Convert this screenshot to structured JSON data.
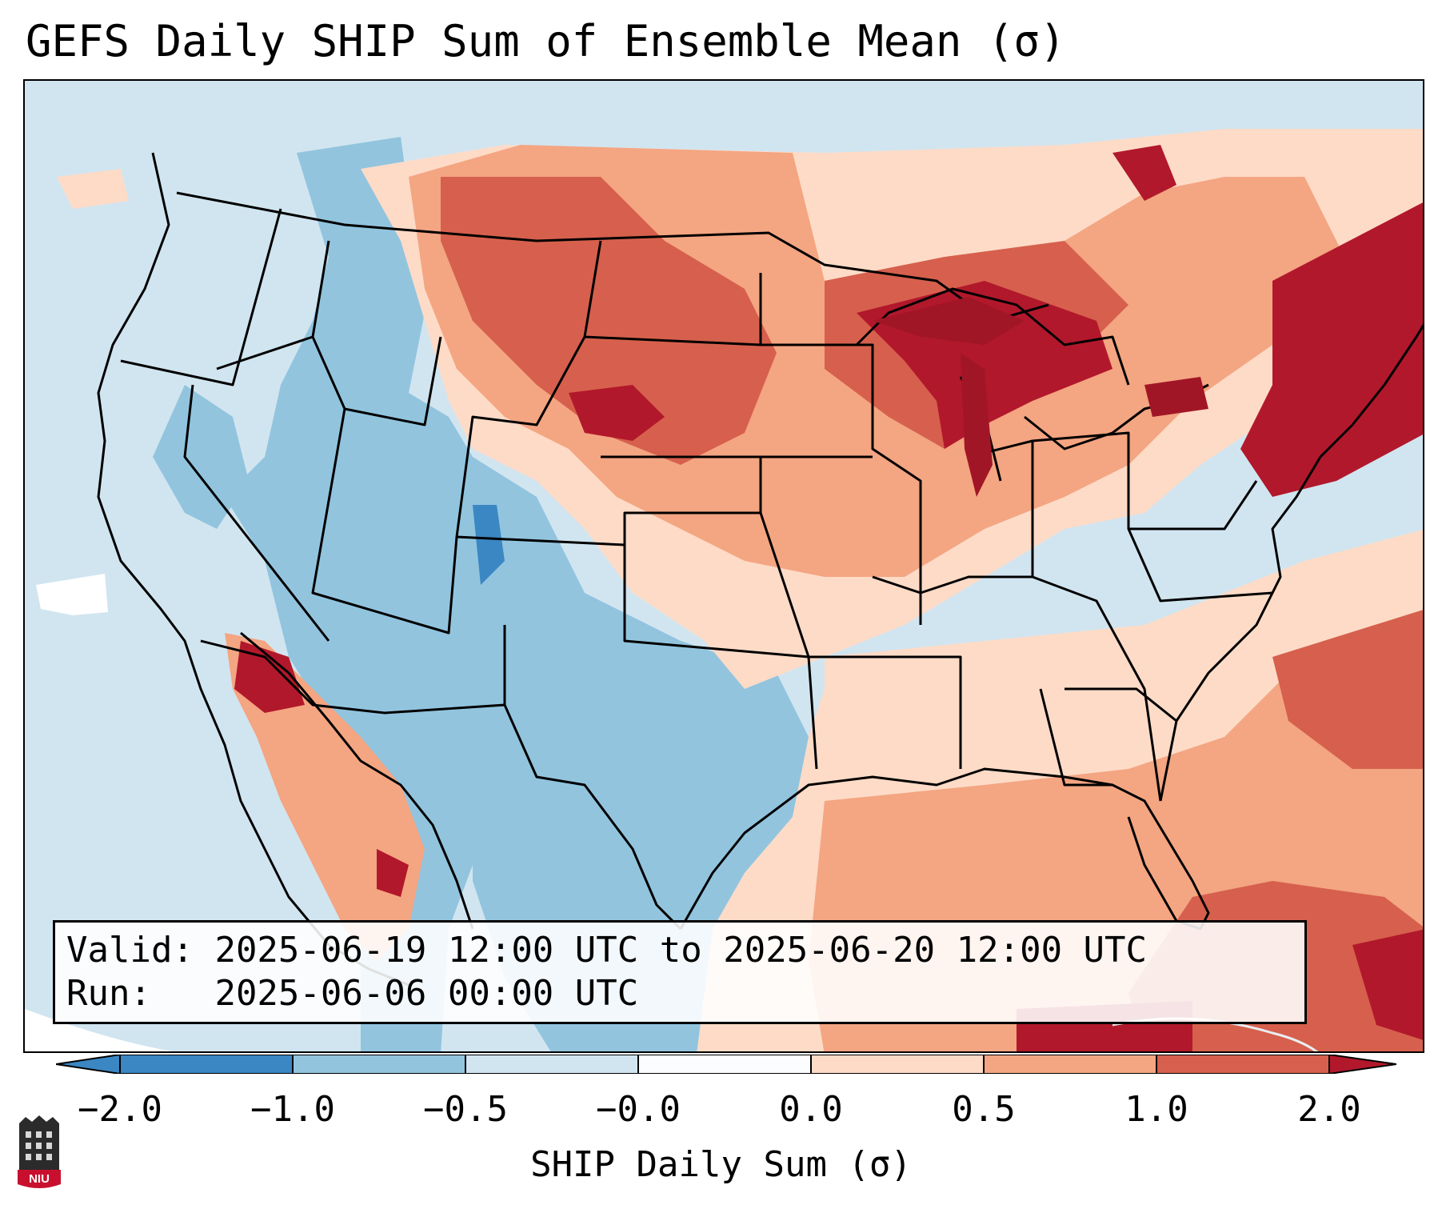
{
  "title": "GEFS Daily SHIP Sum of Ensemble Mean (σ)",
  "info": {
    "valid_label": "Valid:",
    "valid_value": "2025-06-19 12:00 UTC to 2025-06-20 12:00 UTC",
    "run_label": "Run:",
    "run_value": "2025-06-06 00:00 UTC"
  },
  "colorbar": {
    "label": "SHIP Daily Sum (σ)",
    "ticks": [
      "−2.0",
      "−1.0",
      "−0.5",
      "−0.0",
      "0.0",
      "0.5",
      "1.0",
      "2.0"
    ],
    "colors": [
      "#3a87c3",
      "#92c4de",
      "#d1e5f0",
      "#fbfdfe",
      "#fddbc7",
      "#f4a582",
      "#d6604d",
      "#b2182b"
    ],
    "extend": "both"
  },
  "legend_colors": {
    "strong_negative": "#3a87c3",
    "moderate_negative": "#92c4de",
    "weak_negative": "#d1e5f0",
    "weak_positive": "#fddbc7",
    "moderate_positive": "#f4a582",
    "strong_positive": "#d6604d",
    "very_strong_positive": "#b2182b"
  },
  "logo": {
    "text": "NIU"
  }
}
